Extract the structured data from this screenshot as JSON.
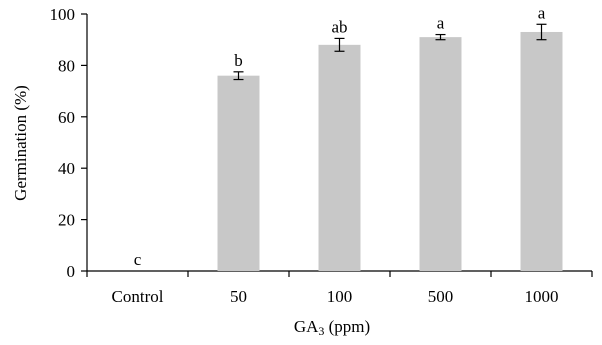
{
  "chart_data": {
    "type": "bar",
    "categories": [
      "Control",
      "50",
      "100",
      "500",
      "1000"
    ],
    "values": [
      0,
      76,
      88,
      91,
      93
    ],
    "errors": [
      0,
      1.5,
      2.5,
      1.0,
      3.0
    ],
    "significance_letters": [
      "c",
      "b",
      "ab",
      "a",
      "a"
    ],
    "ylabel": "Germination (%)",
    "xlabel_main": "GA",
    "xlabel_sub": "3",
    "xlabel_unit": " (ppm)",
    "ylim": [
      0,
      100
    ],
    "yticks": [
      0,
      20,
      40,
      60,
      80,
      100
    ],
    "grid": false,
    "bar_color": "#c8c8c8"
  }
}
